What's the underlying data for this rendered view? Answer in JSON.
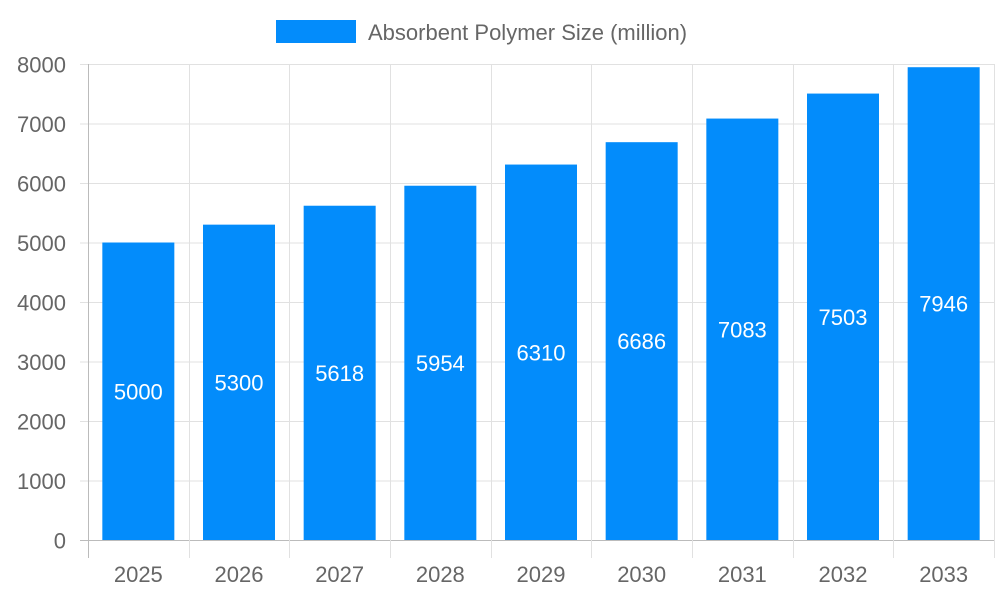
{
  "chart_data": {
    "type": "bar",
    "categories": [
      "2025",
      "2026",
      "2027",
      "2028",
      "2029",
      "2030",
      "2031",
      "2032",
      "2033"
    ],
    "series": [
      {
        "name": "Absorbent Polymer Size (million)",
        "values": [
          5000,
          5300,
          5618,
          5954,
          6310,
          6686,
          7083,
          7503,
          7946
        ],
        "color": "#038cfb"
      }
    ],
    "ylim": [
      0,
      8000
    ],
    "yticks": [
      0,
      1000,
      2000,
      3000,
      4000,
      5000,
      6000,
      7000,
      8000
    ],
    "grid": true,
    "legend": "top-center",
    "data_labels": true
  }
}
